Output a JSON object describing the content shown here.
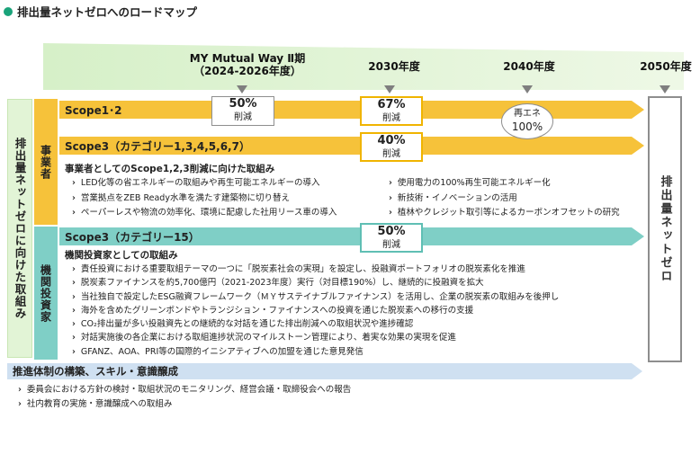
{
  "title": "排出量ネットゼロへのロードマップ",
  "timeline": {
    "mid_plan_line1": "MY Mutual Way Ⅱ期",
    "mid_plan_line2": "（2024-2026年度）",
    "y2030": "2030年度",
    "y2040": "2040年度",
    "y2050": "2050年度"
  },
  "left_vertical_label": "排出量ネットゼロに向けた取組み",
  "business_label": "事業者",
  "investor_label": "機関投資家",
  "scope12": {
    "label": "Scope1･2",
    "box1_value": "50%",
    "box1_sub": "削減",
    "box2_value": "67%",
    "box2_sub": "削減",
    "oval_line1": "再エネ",
    "oval_line2": "100%"
  },
  "scope3a": {
    "label": "Scope3（カテゴリー1,3,4,5,6,7）",
    "box_value": "40%",
    "box_sub": "削減"
  },
  "business_section": {
    "heading": "事業者としてのScope1,2,3削減に向けた取組み",
    "left_items": [
      "LED化等の省エネルギーの取組みや再生可能エネルギーの導入",
      "営業拠点をZEB Ready水準を満たす建築物に切り替え",
      "ペーパーレスや物流の効率化、環境に配慮した社用リース車の導入"
    ],
    "right_items": [
      "使用電力の100%再生可能エネルギー化",
      "新技術・イノベーションの活用",
      "植林やクレジット取引等によるカーボンオフセットの研究"
    ]
  },
  "scope3b": {
    "label": "Scope3（カテゴリー15）",
    "box_value": "50%",
    "box_sub": "削減"
  },
  "investor_section": {
    "heading": "機関投資家としての取組み",
    "items": [
      "責任投資における重要取組テーマの一つに「脱炭素社会の実現」を設定し、投融資ポートフォリオの脱炭素化を推進",
      "脱炭素ファイナンスを約5,700億円（2021-2023年度）実行（対目標190%）し、継続的に投融資を拡大",
      "当社独自で設定したESG融資フレームワーク（ＭＹサステイナブルファイナンス）を活用し、企業の脱炭素の取組みを後押し",
      "海外を含めたグリーンボンドやトランジション・ファイナンスへの投資を通じた脱炭素への移行の支援",
      "CO₂排出量が多い投融資先との継続的な対話を通じた排出削減への取組状況や進捗確認",
      "対話実施後の各企業における取組進捗状況のマイルストーン管理により、着実な効果の実現を促進",
      "GFANZ、AOA、PRI等の国際的イニシアティブへの加盟を通じた意見発信"
    ]
  },
  "goal_label": "排出量ネットゼロ",
  "bottom": {
    "bar_label": "推進体制の構築、スキル・意識醸成",
    "items": [
      "委員会における方針の検討・取組状況のモニタリング、経営会議・取締役会への報告",
      "社内教育の実施・意識醸成への取組み"
    ]
  },
  "colors": {
    "green_accent": "#1aa37a",
    "light_green": "#e2f4d6",
    "yellow": "#f6c23a",
    "teal": "#7fcfc6",
    "blue": "#cfe0f1",
    "box_border_yellow": "#f0b400",
    "box_border_teal": "#5fbfb4",
    "grey": "#8e8e8e"
  },
  "icons": [
    "circle-bullet-icon",
    "down-triangle-icon",
    "chevron-right-icon"
  ]
}
